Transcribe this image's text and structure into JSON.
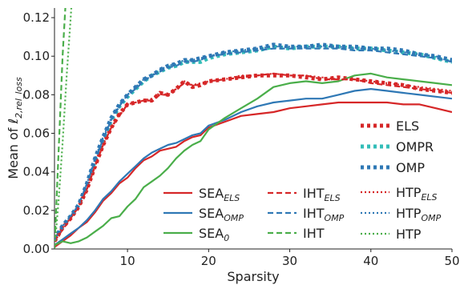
{
  "chart_data": {
    "type": "line",
    "xlabel": "Sparsity",
    "ylabel_prefix": "Mean of ℓ",
    "ylabel_subscript": "2,rel_loss",
    "xlim": [
      1,
      50
    ],
    "ylim": [
      0.0,
      0.125
    ],
    "xticks": [
      10,
      20,
      30,
      40,
      50
    ],
    "yticks": [
      0.0,
      0.02,
      0.04,
      0.06,
      0.08,
      0.1,
      0.12
    ],
    "ytick_labels": [
      "0.00",
      "0.02",
      "0.04",
      "0.06",
      "0.08",
      "0.10",
      "0.12"
    ],
    "grid": false,
    "legend_placement": "lower-right",
    "colors": {
      "red": "#d62728",
      "blue": "#2f78b5",
      "green": "#4aae4a",
      "teal": "#33bdb8"
    },
    "series": [
      {
        "name": "ELS",
        "color": "#d62728",
        "style": "dotted-bold",
        "legend_col": 2,
        "legend_row": 0,
        "x": [
          1,
          2,
          3,
          4,
          5,
          6,
          7,
          8,
          9,
          10,
          11,
          12,
          13,
          14,
          15,
          16,
          17,
          18,
          19,
          20,
          22,
          24,
          26,
          28,
          30,
          32,
          34,
          36,
          38,
          40,
          42,
          44,
          46,
          48,
          50
        ],
        "y": [
          0.004,
          0.011,
          0.016,
          0.022,
          0.031,
          0.043,
          0.054,
          0.063,
          0.07,
          0.075,
          0.076,
          0.077,
          0.077,
          0.081,
          0.08,
          0.083,
          0.087,
          0.084,
          0.085,
          0.087,
          0.088,
          0.089,
          0.09,
          0.09,
          0.09,
          0.089,
          0.088,
          0.089,
          0.088,
          0.087,
          0.086,
          0.085,
          0.083,
          0.082,
          0.081
        ]
      },
      {
        "name": "OMPR",
        "color": "#33bdb8",
        "style": "dotted-bold",
        "legend_col": 2,
        "legend_row": 1,
        "x": [
          1,
          2,
          3,
          4,
          5,
          6,
          7,
          8,
          9,
          10,
          11,
          12,
          13,
          14,
          15,
          16,
          17,
          18,
          19,
          20,
          22,
          24,
          26,
          28,
          30,
          32,
          34,
          36,
          38,
          40,
          42,
          44,
          46,
          48,
          50
        ],
        "y": [
          0.005,
          0.012,
          0.017,
          0.023,
          0.033,
          0.046,
          0.057,
          0.067,
          0.074,
          0.079,
          0.083,
          0.087,
          0.09,
          0.092,
          0.094,
          0.095,
          0.097,
          0.097,
          0.097,
          0.099,
          0.101,
          0.102,
          0.103,
          0.105,
          0.104,
          0.105,
          0.105,
          0.105,
          0.104,
          0.104,
          0.103,
          0.102,
          0.101,
          0.099,
          0.097
        ]
      },
      {
        "name": "OMP",
        "color": "#2f78b5",
        "style": "dotted-bold",
        "legend_col": 2,
        "legend_row": 2,
        "x": [
          1,
          2,
          3,
          4,
          5,
          6,
          7,
          8,
          9,
          10,
          11,
          12,
          13,
          14,
          15,
          16,
          17,
          18,
          19,
          20,
          22,
          24,
          26,
          28,
          30,
          32,
          34,
          36,
          38,
          40,
          42,
          44,
          46,
          48,
          50
        ],
        "y": [
          0.005,
          0.012,
          0.017,
          0.023,
          0.034,
          0.047,
          0.058,
          0.068,
          0.075,
          0.08,
          0.084,
          0.088,
          0.09,
          0.093,
          0.095,
          0.096,
          0.098,
          0.098,
          0.099,
          0.1,
          0.102,
          0.103,
          0.104,
          0.106,
          0.105,
          0.105,
          0.106,
          0.105,
          0.105,
          0.104,
          0.104,
          0.103,
          0.101,
          0.1,
          0.098
        ]
      },
      {
        "name": "SEA",
        "name_subscript": "ELS",
        "color": "#d62728",
        "style": "solid",
        "legend_col": 0,
        "legend_row": 0,
        "x": [
          1,
          2,
          3,
          4,
          5,
          6,
          7,
          8,
          9,
          10,
          11,
          12,
          13,
          14,
          15,
          16,
          17,
          18,
          19,
          20,
          22,
          24,
          26,
          28,
          30,
          32,
          34,
          36,
          38,
          40,
          42,
          44,
          46,
          48,
          50
        ],
        "y": [
          0.001,
          0.004,
          0.007,
          0.011,
          0.014,
          0.019,
          0.025,
          0.029,
          0.034,
          0.037,
          0.042,
          0.046,
          0.048,
          0.051,
          0.052,
          0.053,
          0.056,
          0.058,
          0.059,
          0.063,
          0.066,
          0.069,
          0.07,
          0.071,
          0.073,
          0.074,
          0.075,
          0.076,
          0.076,
          0.076,
          0.076,
          0.075,
          0.075,
          0.073,
          0.071
        ]
      },
      {
        "name": "SEA",
        "name_subscript": "OMP",
        "color": "#2f78b5",
        "style": "solid",
        "legend_col": 0,
        "legend_row": 1,
        "x": [
          1,
          2,
          3,
          4,
          5,
          6,
          7,
          8,
          9,
          10,
          11,
          12,
          13,
          14,
          15,
          16,
          17,
          18,
          19,
          20,
          22,
          24,
          26,
          28,
          30,
          32,
          34,
          36,
          38,
          40,
          42,
          44,
          46,
          48,
          50
        ],
        "y": [
          0.002,
          0.005,
          0.008,
          0.011,
          0.015,
          0.02,
          0.026,
          0.03,
          0.035,
          0.039,
          0.043,
          0.047,
          0.05,
          0.052,
          0.054,
          0.055,
          0.057,
          0.059,
          0.06,
          0.064,
          0.067,
          0.071,
          0.074,
          0.076,
          0.077,
          0.078,
          0.078,
          0.08,
          0.082,
          0.083,
          0.082,
          0.081,
          0.08,
          0.079,
          0.078
        ]
      },
      {
        "name": "SEA",
        "name_subscript": "0",
        "color": "#4aae4a",
        "style": "solid",
        "legend_col": 0,
        "legend_row": 2,
        "x": [
          1,
          2,
          3,
          4,
          5,
          6,
          7,
          8,
          9,
          10,
          11,
          12,
          13,
          14,
          15,
          16,
          17,
          18,
          19,
          20,
          22,
          24,
          26,
          28,
          30,
          32,
          34,
          36,
          38,
          40,
          42,
          44,
          46,
          48,
          50
        ],
        "y": [
          0.002,
          0.004,
          0.003,
          0.004,
          0.006,
          0.009,
          0.012,
          0.016,
          0.017,
          0.022,
          0.026,
          0.032,
          0.035,
          0.038,
          0.042,
          0.047,
          0.051,
          0.054,
          0.056,
          0.062,
          0.068,
          0.073,
          0.078,
          0.084,
          0.086,
          0.087,
          0.086,
          0.087,
          0.09,
          0.091,
          0.089,
          0.088,
          0.087,
          0.086,
          0.085
        ]
      },
      {
        "name": "IHT",
        "name_subscript": "ELS",
        "color": "#d62728",
        "style": "dashed",
        "legend_col": 1,
        "legend_row": 0,
        "x": [
          1,
          2,
          3,
          4,
          5,
          6,
          7,
          8,
          9,
          10,
          11,
          12,
          13,
          14,
          15,
          16,
          17,
          18,
          19,
          20,
          22,
          24,
          26,
          28,
          30,
          32,
          34,
          36,
          38,
          40,
          42,
          44,
          46,
          48,
          50
        ],
        "y": [
          0.004,
          0.01,
          0.016,
          0.022,
          0.031,
          0.043,
          0.054,
          0.063,
          0.069,
          0.075,
          0.076,
          0.077,
          0.077,
          0.08,
          0.08,
          0.083,
          0.086,
          0.085,
          0.085,
          0.087,
          0.088,
          0.089,
          0.09,
          0.091,
          0.09,
          0.09,
          0.088,
          0.088,
          0.088,
          0.086,
          0.085,
          0.084,
          0.083,
          0.082,
          0.081
        ]
      },
      {
        "name": "IHT",
        "name_subscript": "OMP",
        "color": "#2f78b5",
        "style": "dashed",
        "legend_col": 1,
        "legend_row": 1,
        "x": [
          1,
          2,
          3,
          4,
          5,
          6,
          7,
          8,
          9,
          10,
          11,
          12,
          13,
          14,
          15,
          16,
          17,
          18,
          19,
          20,
          22,
          24,
          26,
          28,
          30,
          32,
          34,
          36,
          38,
          40,
          42,
          44,
          46,
          48,
          50
        ],
        "y": [
          0.005,
          0.011,
          0.017,
          0.023,
          0.034,
          0.046,
          0.057,
          0.067,
          0.074,
          0.08,
          0.083,
          0.087,
          0.09,
          0.092,
          0.094,
          0.095,
          0.097,
          0.097,
          0.098,
          0.1,
          0.101,
          0.102,
          0.103,
          0.104,
          0.104,
          0.104,
          0.104,
          0.104,
          0.103,
          0.103,
          0.102,
          0.101,
          0.1,
          0.099,
          0.097
        ]
      },
      {
        "name": "IHT",
        "color": "#4aae4a",
        "style": "dashed",
        "legend_col": 1,
        "legend_row": 2,
        "x": [
          1,
          1.3,
          1.6,
          2.0,
          2.4,
          2.7
        ],
        "y": [
          0.0,
          0.03,
          0.06,
          0.1,
          0.13,
          0.16
        ]
      },
      {
        "name": "HTP",
        "name_subscript": "ELS",
        "color": "#d62728",
        "style": "dotted",
        "legend_col": 2,
        "legend_row": 3,
        "x": [
          1,
          2,
          3,
          4,
          5,
          6,
          7,
          8,
          9,
          10,
          11,
          12,
          13,
          14,
          15,
          16,
          17,
          18,
          19,
          20,
          22,
          24,
          26,
          28,
          30,
          32,
          34,
          36,
          38,
          40,
          42,
          44,
          46,
          48,
          50
        ],
        "y": [
          0.004,
          0.011,
          0.016,
          0.022,
          0.031,
          0.043,
          0.054,
          0.063,
          0.07,
          0.075,
          0.076,
          0.077,
          0.078,
          0.081,
          0.08,
          0.083,
          0.087,
          0.085,
          0.086,
          0.087,
          0.088,
          0.09,
          0.09,
          0.091,
          0.09,
          0.09,
          0.089,
          0.088,
          0.088,
          0.087,
          0.086,
          0.085,
          0.084,
          0.083,
          0.082
        ]
      },
      {
        "name": "HTP",
        "name_subscript": "OMP",
        "color": "#2f78b5",
        "style": "dotted",
        "legend_col": 2,
        "legend_row": 4,
        "x": [
          1,
          2,
          3,
          4,
          5,
          6,
          7,
          8,
          9,
          10,
          11,
          12,
          13,
          14,
          15,
          16,
          17,
          18,
          19,
          20,
          22,
          24,
          26,
          28,
          30,
          32,
          34,
          36,
          38,
          40,
          42,
          44,
          46,
          48,
          50
        ],
        "y": [
          0.005,
          0.012,
          0.017,
          0.023,
          0.034,
          0.047,
          0.058,
          0.068,
          0.075,
          0.08,
          0.084,
          0.088,
          0.09,
          0.093,
          0.095,
          0.096,
          0.098,
          0.098,
          0.099,
          0.1,
          0.102,
          0.103,
          0.104,
          0.105,
          0.105,
          0.105,
          0.105,
          0.105,
          0.104,
          0.104,
          0.103,
          0.102,
          0.101,
          0.1,
          0.097
        ]
      },
      {
        "name": "HTP",
        "color": "#4aae4a",
        "style": "dotted",
        "legend_col": 2,
        "legend_row": 5,
        "x": [
          1,
          1.5,
          2.0,
          2.5,
          3.0,
          3.3
        ],
        "y": [
          0.0,
          0.025,
          0.055,
          0.09,
          0.12,
          0.14
        ]
      }
    ]
  }
}
